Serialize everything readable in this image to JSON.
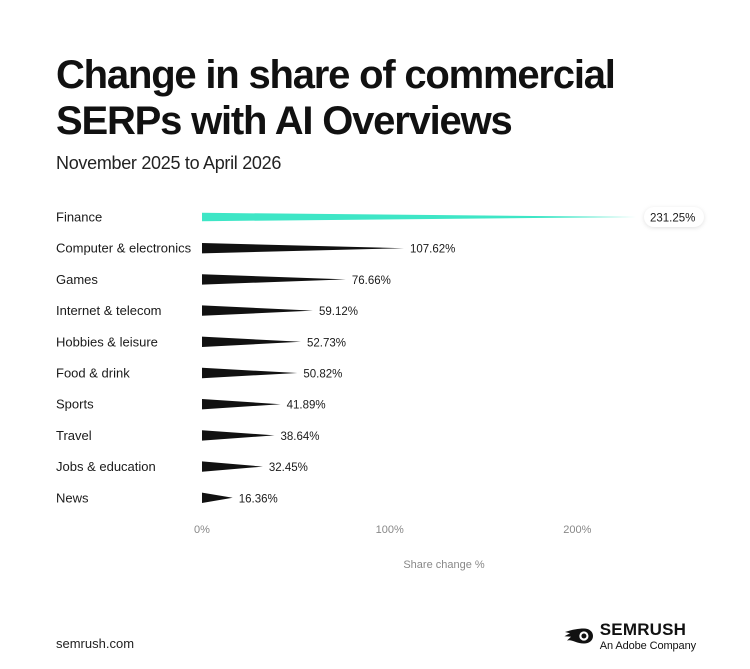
{
  "title_lines": [
    "Change in share of commercial",
    "SERPs with AI Overviews"
  ],
  "subtitle": "November 2025 to April 2026",
  "colors": {
    "highlight": "#3ee6c6",
    "bar": "#111111",
    "text": "#1a1a1a",
    "axis_text": "#888888"
  },
  "chart_data": {
    "type": "bar",
    "orientation": "horizontal",
    "title": "Change in share of commercial SERPs with AI Overviews",
    "subtitle": "November 2025 to April 2026",
    "categories": [
      "Finance",
      "Computer & electronics",
      "Games",
      "Internet & telecom",
      "Hobbies & leisure",
      "Food & drink",
      "Sports",
      "Travel",
      "Jobs & education",
      "News"
    ],
    "values": [
      231.25,
      107.62,
      76.66,
      59.12,
      52.73,
      50.82,
      41.89,
      38.64,
      32.45,
      16.36
    ],
    "value_labels": [
      "231.25%",
      "107.62%",
      "76.66%",
      "59.12%",
      "52.73%",
      "50.82%",
      "41.89%",
      "38.64%",
      "32.45%",
      "16.36%"
    ],
    "highlight_category": "Finance",
    "xlabel": "Share change %",
    "ylabel": "",
    "xlim": [
      0,
      231.25
    ],
    "xticks": [
      0,
      100,
      200
    ],
    "xtick_labels": [
      "0%",
      "100%",
      "200%"
    ],
    "grid": false,
    "legend": "none"
  },
  "footer": {
    "url": "semrush.com",
    "brand_name": "SEMRUSH",
    "brand_sub": "An Adobe Company",
    "logo_icon": "semrush-fireball-icon"
  }
}
